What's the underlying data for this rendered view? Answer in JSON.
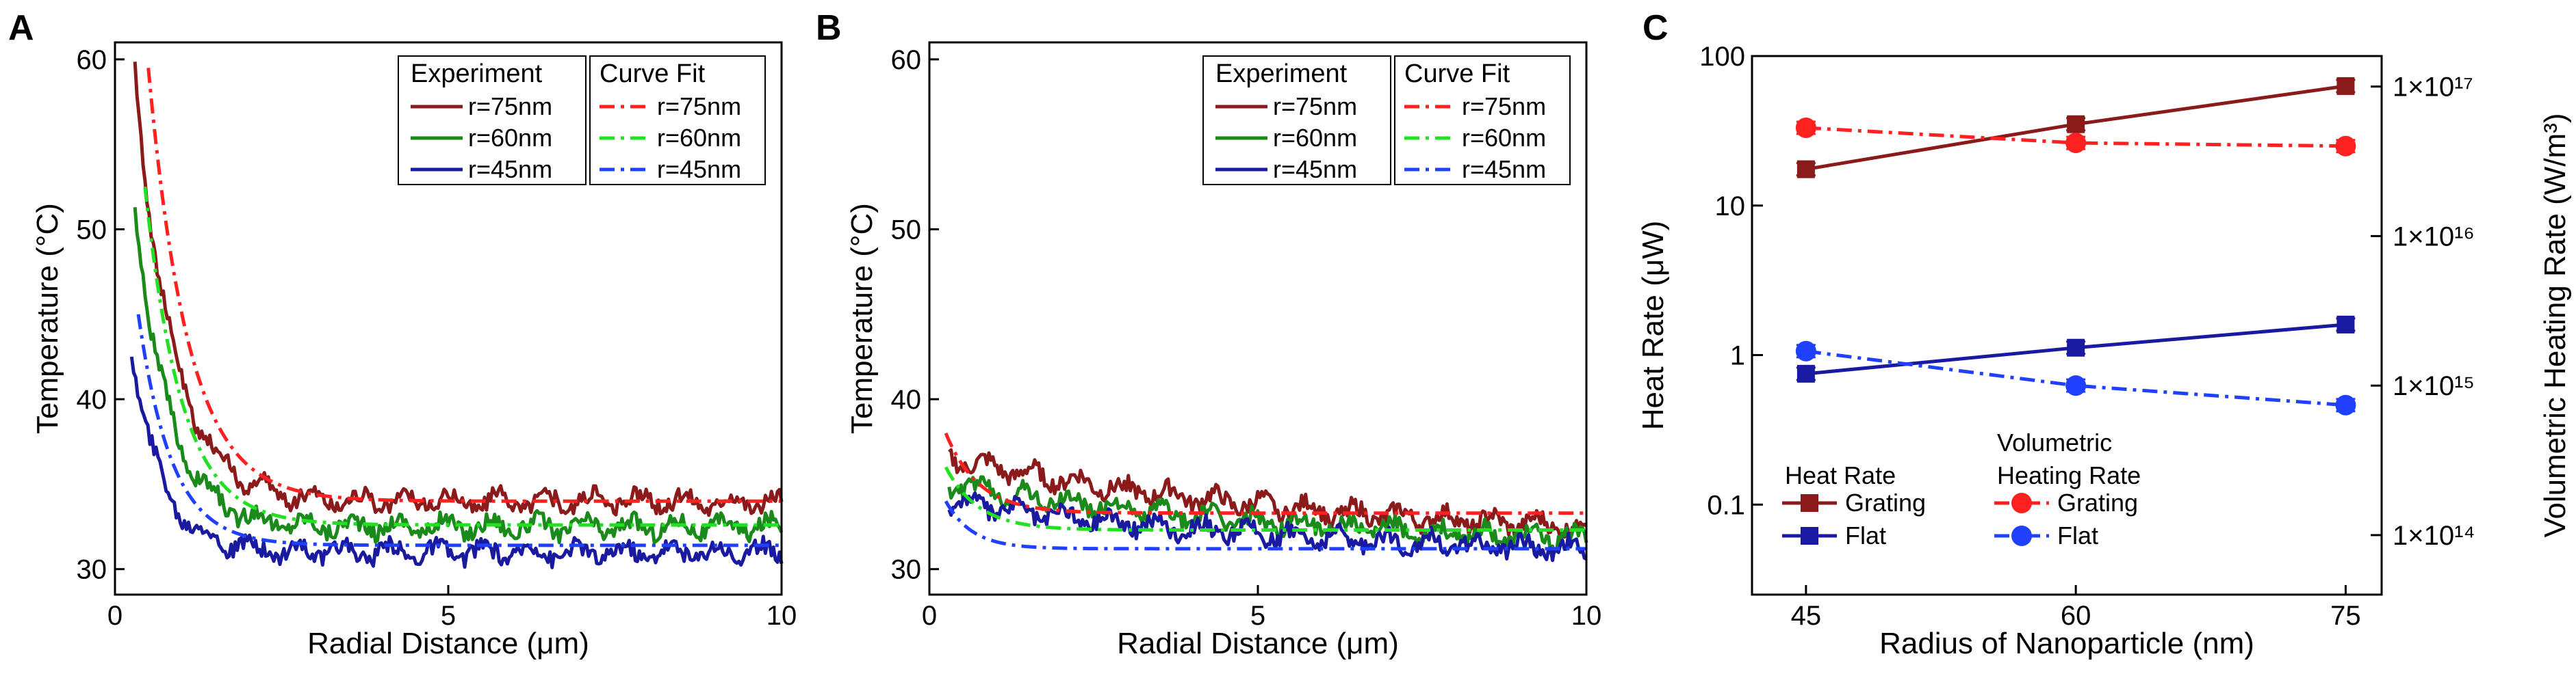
{
  "colors": {
    "dark_red": "#8b1a1a",
    "green": "#1a8a1a",
    "blue": "#1a1aa0",
    "red": "#ff2020",
    "lime": "#22e022",
    "light_blue": "#2040ff"
  },
  "chart_data": [
    {
      "id": "A",
      "panel_label": "A",
      "type": "line",
      "xlabel": "Radial Distance (μm)",
      "ylabel": "Temperature (°C)",
      "xlim": [
        0,
        10
      ],
      "ylim": [
        28.5,
        61
      ],
      "xticks": [
        0,
        5,
        10
      ],
      "yticks": [
        30,
        40,
        50,
        60
      ],
      "legend": {
        "experiment_title": "Experiment",
        "fit_title": "Curve Fit"
      },
      "series": [
        {
          "name": "r=75nm",
          "group": "Experiment",
          "color": "#8b1a1a",
          "dash": "solid",
          "x_start": 0.3,
          "start": 59.5,
          "plateau": 34.0,
          "k": 0.55
        },
        {
          "name": "r=60nm",
          "group": "Experiment",
          "color": "#1a8a1a",
          "dash": "solid",
          "x_start": 0.3,
          "start": 51.5,
          "plateau": 32.5,
          "k": 0.5
        },
        {
          "name": "r=45nm",
          "group": "Experiment",
          "color": "#1a1aa0",
          "dash": "solid",
          "x_start": 0.25,
          "start": 43.0,
          "plateau": 31.0,
          "k": 0.45
        },
        {
          "name": "r=75nm",
          "group": "Curve Fit",
          "color": "#ff2020",
          "dash": "dashdot",
          "x_start": 0.5,
          "start": 59.5,
          "plateau": 34.0,
          "k": 0.6
        },
        {
          "name": "r=60nm",
          "group": "Curve Fit",
          "color": "#22e022",
          "dash": "dashdot",
          "x_start": 0.45,
          "start": 52.5,
          "plateau": 32.6,
          "k": 0.55
        },
        {
          "name": "r=45nm",
          "group": "Curve Fit",
          "color": "#2040ff",
          "dash": "dashdot",
          "x_start": 0.35,
          "start": 45.0,
          "plateau": 31.4,
          "k": 0.5
        }
      ]
    },
    {
      "id": "B",
      "panel_label": "B",
      "type": "line",
      "xlabel": "Radial Distance (μm)",
      "ylabel": "Temperature (°C)",
      "xlim": [
        0,
        10
      ],
      "ylim": [
        28.5,
        61
      ],
      "xticks": [
        0,
        5,
        10
      ],
      "yticks": [
        30,
        40,
        50,
        60
      ],
      "legend": {
        "experiment_title": "Experiment",
        "fit_title": "Curve Fit"
      },
      "series": [
        {
          "name": "r=75nm",
          "group": "Experiment",
          "color": "#8b1a1a",
          "dash": "solid",
          "x_start": 0.3,
          "start": 36.5,
          "plateau": 31.5,
          "k": 6.0
        },
        {
          "name": "r=60nm",
          "group": "Experiment",
          "color": "#1a8a1a",
          "dash": "solid",
          "x_start": 0.3,
          "start": 35.0,
          "plateau": 31.0,
          "k": 6.0
        },
        {
          "name": "r=45nm",
          "group": "Experiment",
          "color": "#1a1aa0",
          "dash": "solid",
          "x_start": 0.3,
          "start": 34.0,
          "plateau": 30.5,
          "k": 6.0
        },
        {
          "name": "r=75nm",
          "group": "Curve Fit",
          "color": "#ff2020",
          "dash": "dashdot",
          "x_start": 0.25,
          "start": 38.0,
          "plateau": 33.3,
          "k": 0.5
        },
        {
          "name": "r=60nm",
          "group": "Curve Fit",
          "color": "#22e022",
          "dash": "dashdot",
          "x_start": 0.25,
          "start": 36.0,
          "plateau": 32.3,
          "k": 0.5
        },
        {
          "name": "r=45nm",
          "group": "Curve Fit",
          "color": "#2040ff",
          "dash": "dashdot",
          "x_start": 0.25,
          "start": 34.0,
          "plateau": 31.2,
          "k": 0.4
        }
      ]
    },
    {
      "id": "C",
      "panel_label": "C",
      "type": "line",
      "xlabel": "Radius of Nanoparticle (nm)",
      "ylabel": "Heat Rate (μW)",
      "ylabel_right": "Volumetric Heating Rate (W/m³)",
      "x": [
        45,
        60,
        75
      ],
      "xticks": [
        45,
        60,
        75
      ],
      "xlim": [
        42,
        77
      ],
      "ylim_log": [
        0.025,
        100
      ],
      "yticks": [
        0.1,
        1,
        10,
        100
      ],
      "ytick_labels": [
        "0.1",
        "1",
        "10",
        "100"
      ],
      "yticks_right": [
        100000000000000.0,
        1000000000000000.0,
        1e+16,
        1e+17
      ],
      "ytick_labels_right": [
        "1×10¹⁴",
        "1×10¹⁵",
        "1×10¹⁶",
        "1×10¹⁷"
      ],
      "right_axis_factor": 1600000000000000.0,
      "legend": {
        "heat_title": "Heat Rate",
        "vol_title_line1": "Volumetric",
        "vol_title_line2": "Heating Rate"
      },
      "series": [
        {
          "name": "Grating",
          "group": "Heat Rate",
          "axis": "left",
          "color": "#8b1a1a",
          "marker": "square",
          "dash": "solid",
          "values": [
            17.5,
            35,
            63
          ]
        },
        {
          "name": "Flat",
          "group": "Heat Rate",
          "axis": "left",
          "color": "#1a1aa0",
          "marker": "square",
          "dash": "solid",
          "values": [
            0.75,
            1.12,
            1.6
          ]
        },
        {
          "name": "Grating",
          "group": "Volumetric Heating Rate",
          "axis": "right",
          "color": "#ff2020",
          "marker": "circle",
          "dash": "dashdot",
          "values": [
            5.3e+16,
            4.2e+16,
            4e+16
          ]
        },
        {
          "name": "Flat",
          "group": "Volumetric Heating Rate",
          "axis": "right",
          "color": "#2040ff",
          "marker": "circle",
          "dash": "dashdot",
          "values": [
            1700000000000000.0,
            1000000000000000.0,
            740000000000000.0
          ]
        }
      ]
    }
  ]
}
